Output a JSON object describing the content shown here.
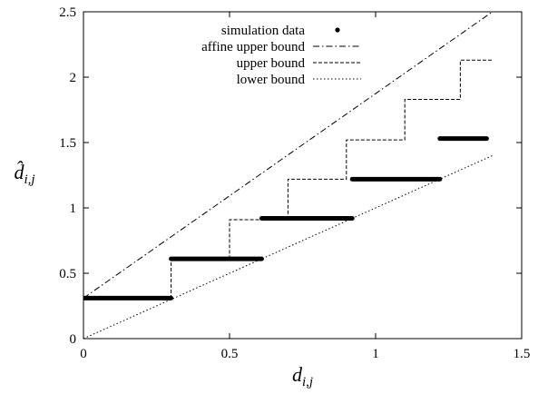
{
  "chart_data": {
    "type": "line",
    "xlabel": "d",
    "xlabel_subscript": "i,j",
    "ylabel": "d̂",
    "ylabel_subscript": "i,j",
    "xlim": [
      0,
      1.5
    ],
    "ylim": [
      0,
      2.5
    ],
    "x_ticks": [
      0,
      0.5,
      1,
      1.5
    ],
    "x_tick_labels": [
      "0",
      "0.5",
      "1",
      "1.5"
    ],
    "y_ticks": [
      0,
      0.5,
      1,
      1.5,
      2,
      2.5
    ],
    "y_tick_labels": [
      "0",
      "0.5",
      "1",
      "1.5",
      "2",
      "2.5"
    ],
    "grid": false,
    "legend_position": "top-left",
    "series": [
      {
        "name": "simulation data",
        "style": "points",
        "segments": [
          {
            "x": [
              0,
              0.3
            ],
            "y": 0.31
          },
          {
            "x": [
              0.3,
              0.61
            ],
            "y": 0.61
          },
          {
            "x": [
              0.61,
              0.92
            ],
            "y": 0.92
          },
          {
            "x": [
              0.92,
              1.22
            ],
            "y": 1.22
          },
          {
            "x": [
              1.22,
              1.38
            ],
            "y": 1.53
          }
        ]
      },
      {
        "name": "affine upper bound",
        "style": "dash-dot",
        "x": [
          0,
          1.4
        ],
        "y": [
          0.31,
          2.5
        ]
      },
      {
        "name": "upper bound",
        "style": "dashed",
        "x": [
          0,
          0.3,
          0.3,
          0.5,
          0.5,
          0.7,
          0.7,
          0.9,
          0.9,
          1.1,
          1.1,
          1.29,
          1.29,
          1.4
        ],
        "y": [
          0.31,
          0.31,
          0.61,
          0.61,
          0.91,
          0.91,
          1.22,
          1.22,
          1.52,
          1.52,
          1.83,
          1.83,
          2.13,
          2.13
        ]
      },
      {
        "name": "lower bound",
        "style": "dotted",
        "x": [
          0,
          1.4
        ],
        "y": [
          0,
          1.4
        ]
      }
    ]
  }
}
